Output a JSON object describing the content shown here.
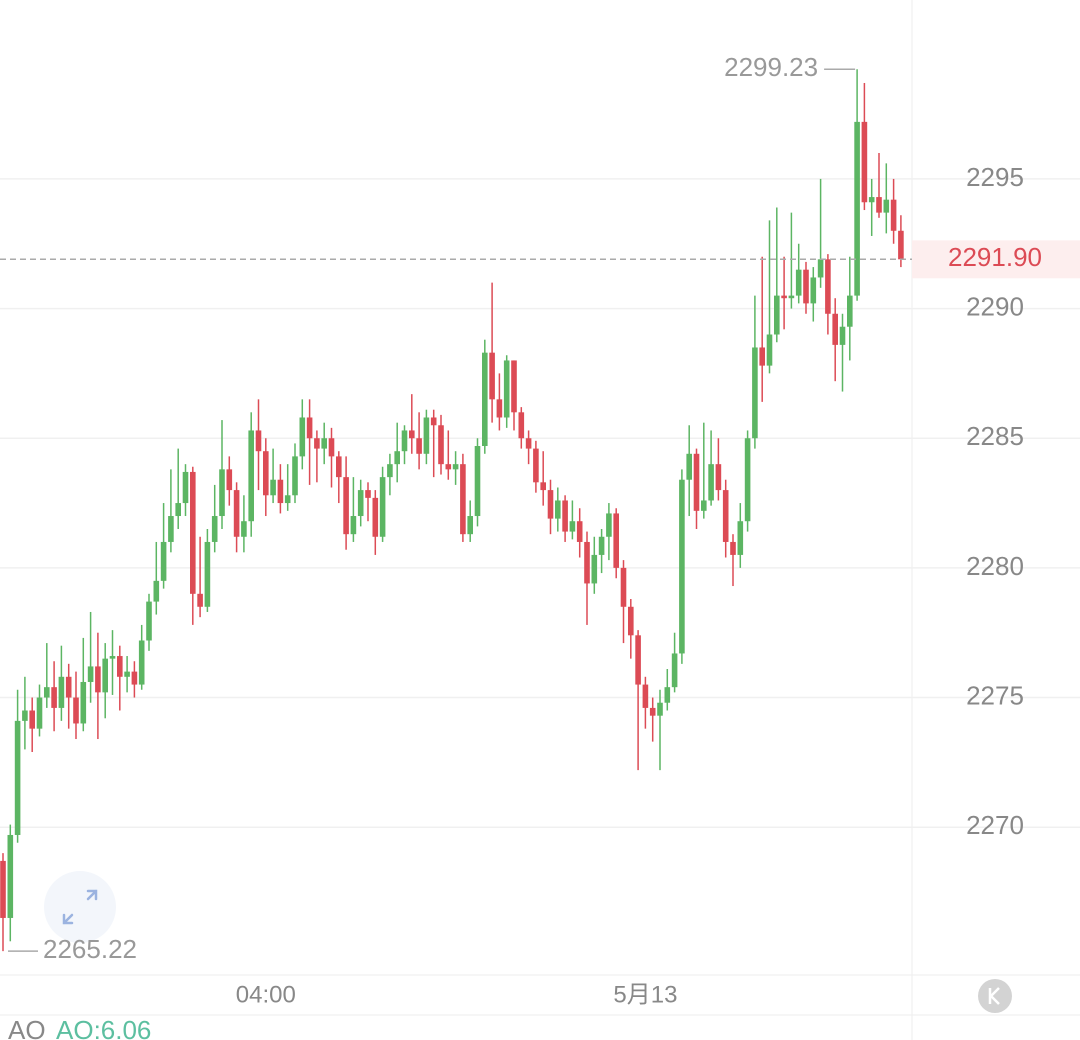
{
  "chart_data": {
    "type": "candlestick",
    "open": [
      2268.7,
      2266.5,
      2269.7,
      2274.1,
      2274.5,
      2273.8,
      2275.0,
      2275.4,
      2274.6,
      2275.8,
      2275.0,
      2274.0,
      2275.6,
      2276.2,
      2275.2,
      2276.5,
      2276.6,
      2275.8,
      2276.0,
      2275.5,
      2277.2,
      2278.7,
      2279.5,
      2281.0,
      2282.0,
      2282.5,
      2283.7,
      2279.0,
      2278.5,
      2281.0,
      2282.0,
      2283.8,
      2283.0,
      2281.2,
      2281.8,
      2285.3,
      2284.5,
      2282.8,
      2283.4,
      2282.5,
      2282.8,
      2284.3,
      2285.8,
      2285.0,
      2284.6,
      2285.0,
      2284.3,
      2283.5,
      2281.3,
      2282.0,
      2283.0,
      2282.7,
      2281.2,
      2283.5,
      2284.0,
      2284.5,
      2285.3,
      2285.0,
      2284.4,
      2285.8,
      2285.5,
      2284.0,
      2283.8,
      2284.0,
      2281.3,
      2282.0,
      2284.7,
      2288.3,
      2286.5,
      2285.8,
      2288.0,
      2286.0,
      2285.0,
      2284.6,
      2283.3,
      2283.0,
      2281.9,
      2282.6,
      2281.4,
      2281.8,
      2281.0,
      2279.4,
      2280.5,
      2281.2,
      2282.1,
      2280.0,
      2278.5,
      2277.4,
      2275.5,
      2274.6,
      2274.3,
      2274.8,
      2275.4,
      2276.7,
      2283.4,
      2284.4,
      2282.2,
      2282.6,
      2284.0,
      2283.0,
      2281.0,
      2280.5,
      2281.8,
      2285.0,
      2288.5,
      2287.8,
      2289.0,
      2290.5,
      2290.4,
      2290.5,
      2291.5,
      2290.2,
      2291.2,
      2291.9,
      2289.8,
      2288.6,
      2289.3,
      2290.5,
      2297.2,
      2294.1,
      2294.3,
      2293.7,
      2294.2,
      2293.0
    ],
    "high": [
      2269.0,
      2270.1,
      2275.3,
      2275.8,
      2275.0,
      2275.5,
      2277.1,
      2276.4,
      2277.0,
      2276.3,
      2276.0,
      2277.3,
      2278.3,
      2277.5,
      2277.1,
      2277.6,
      2277.0,
      2276.6,
      2276.4,
      2277.8,
      2279.0,
      2281.0,
      2282.5,
      2283.8,
      2284.6,
      2284.0,
      2283.9,
      2281.2,
      2281.5,
      2283.2,
      2285.7,
      2284.3,
      2283.3,
      2282.8,
      2286.0,
      2286.5,
      2285.0,
      2284.6,
      2284.0,
      2284.0,
      2284.8,
      2286.5,
      2286.5,
      2285.3,
      2285.6,
      2285.4,
      2284.5,
      2284.3,
      2283.5,
      2283.4,
      2283.3,
      2283.0,
      2283.9,
      2284.4,
      2285.6,
      2285.5,
      2286.7,
      2286.0,
      2286.1,
      2286.1,
      2285.9,
      2285.3,
      2284.5,
      2284.4,
      2282.6,
      2285.0,
      2288.8,
      2291.0,
      2287.5,
      2288.2,
      2288.0,
      2286.2,
      2285.3,
      2284.9,
      2284.5,
      2283.4,
      2283.1,
      2282.8,
      2282.6,
      2282.3,
      2281.4,
      2281.2,
      2281.5,
      2282.5,
      2282.3,
      2280.3,
      2278.8,
      2277.6,
      2275.8,
      2275.0,
      2275.3,
      2276.1,
      2277.5,
      2283.8,
      2285.5,
      2284.6,
      2285.6,
      2285.3,
      2285.0,
      2283.4,
      2281.3,
      2282.5,
      2285.3,
      2290.5,
      2292.0,
      2293.4,
      2293.9,
      2292.0,
      2293.7,
      2292.5,
      2291.8,
      2291.6,
      2295.0,
      2292.1,
      2290.4,
      2289.8,
      2292.0,
      2299.23,
      2298.7,
      2295.0,
      2296.0,
      2295.6,
      2295.0,
      2293.6
    ],
    "low": [
      2265.22,
      2265.6,
      2269.4,
      2273.0,
      2272.9,
      2273.5,
      2274.6,
      2273.7,
      2274.1,
      2273.8,
      2273.4,
      2273.7,
      2274.8,
      2273.4,
      2274.2,
      2275.1,
      2274.5,
      2275.2,
      2275.0,
      2275.3,
      2276.8,
      2278.2,
      2279.2,
      2280.6,
      2281.5,
      2282.0,
      2277.8,
      2278.1,
      2278.3,
      2280.6,
      2281.5,
      2282.4,
      2280.6,
      2280.6,
      2281.2,
      2283.0,
      2282.0,
      2282.5,
      2282.1,
      2282.2,
      2282.5,
      2283.8,
      2283.2,
      2283.3,
      2284.0,
      2283.1,
      2282.5,
      2280.7,
      2281.0,
      2281.6,
      2281.8,
      2280.5,
      2281.0,
      2282.8,
      2283.3,
      2284.0,
      2284.4,
      2283.8,
      2284.0,
      2283.5,
      2283.6,
      2283.4,
      2283.2,
      2281.0,
      2281.0,
      2281.6,
      2284.4,
      2285.6,
      2285.3,
      2285.4,
      2285.3,
      2284.6,
      2284.0,
      2282.9,
      2282.4,
      2281.3,
      2281.4,
      2281.0,
      2281.1,
      2280.4,
      2277.8,
      2279.0,
      2279.8,
      2280.3,
      2279.6,
      2277.1,
      2276.5,
      2272.2,
      2273.8,
      2273.3,
      2272.2,
      2274.5,
      2275.2,
      2276.3,
      2282.0,
      2281.5,
      2281.9,
      2282.4,
      2282.6,
      2280.4,
      2279.3,
      2280.0,
      2281.4,
      2284.6,
      2286.4,
      2287.5,
      2288.7,
      2289.2,
      2290.0,
      2290.2,
      2289.8,
      2289.5,
      2290.8,
      2289.0,
      2287.2,
      2286.8,
      2288.0,
      2290.3,
      2293.8,
      2292.8,
      2293.5,
      2292.9,
      2292.5,
      2291.6
    ],
    "close": [
      2266.5,
      2269.7,
      2274.1,
      2274.5,
      2273.8,
      2275.0,
      2275.4,
      2274.6,
      2275.8,
      2275.0,
      2274.0,
      2275.6,
      2276.2,
      2275.2,
      2276.5,
      2276.6,
      2275.8,
      2276.0,
      2275.5,
      2277.2,
      2278.7,
      2279.5,
      2281.0,
      2282.0,
      2282.5,
      2283.7,
      2279.0,
      2278.5,
      2281.0,
      2282.0,
      2283.8,
      2283.0,
      2281.2,
      2281.8,
      2285.3,
      2284.5,
      2282.8,
      2283.4,
      2282.5,
      2282.8,
      2284.3,
      2285.8,
      2285.0,
      2284.6,
      2285.0,
      2284.3,
      2283.5,
      2281.3,
      2282.0,
      2283.0,
      2282.7,
      2281.2,
      2283.5,
      2284.0,
      2284.5,
      2285.3,
      2285.0,
      2284.4,
      2285.8,
      2285.5,
      2284.0,
      2283.8,
      2284.0,
      2281.3,
      2282.0,
      2284.7,
      2288.3,
      2286.5,
      2285.8,
      2288.0,
      2286.0,
      2285.0,
      2284.6,
      2283.3,
      2283.0,
      2281.9,
      2282.6,
      2281.4,
      2281.8,
      2281.0,
      2279.4,
      2280.5,
      2281.2,
      2282.1,
      2280.0,
      2278.5,
      2277.4,
      2275.5,
      2274.6,
      2274.3,
      2274.8,
      2275.4,
      2276.7,
      2283.4,
      2284.4,
      2282.2,
      2282.6,
      2284.0,
      2283.0,
      2281.0,
      2280.5,
      2281.8,
      2285.0,
      2288.5,
      2287.8,
      2289.0,
      2290.5,
      2290.4,
      2290.5,
      2291.5,
      2290.2,
      2291.2,
      2291.9,
      2289.8,
      2288.6,
      2289.3,
      2290.5,
      2297.2,
      2294.1,
      2294.3,
      2293.7,
      2294.2,
      2293.0,
      2291.9
    ],
    "up_color": "#5cb563",
    "down_color": "#dc4b55",
    "ylim": [
      2264.3,
      2301.9
    ],
    "yticks": [
      2270,
      2275,
      2280,
      2285,
      2290,
      2295
    ],
    "xticks": [
      {
        "value": 36,
        "label": "04:00"
      },
      {
        "value": 88,
        "label": "5月13"
      }
    ],
    "grid": true,
    "max_label": 2299.23,
    "min_label": 2265.22,
    "last_price": {
      "value": 2291.9,
      "label": "2291.90"
    },
    "indicator": {
      "name": "AO",
      "value_label": "AO:6.06"
    }
  }
}
